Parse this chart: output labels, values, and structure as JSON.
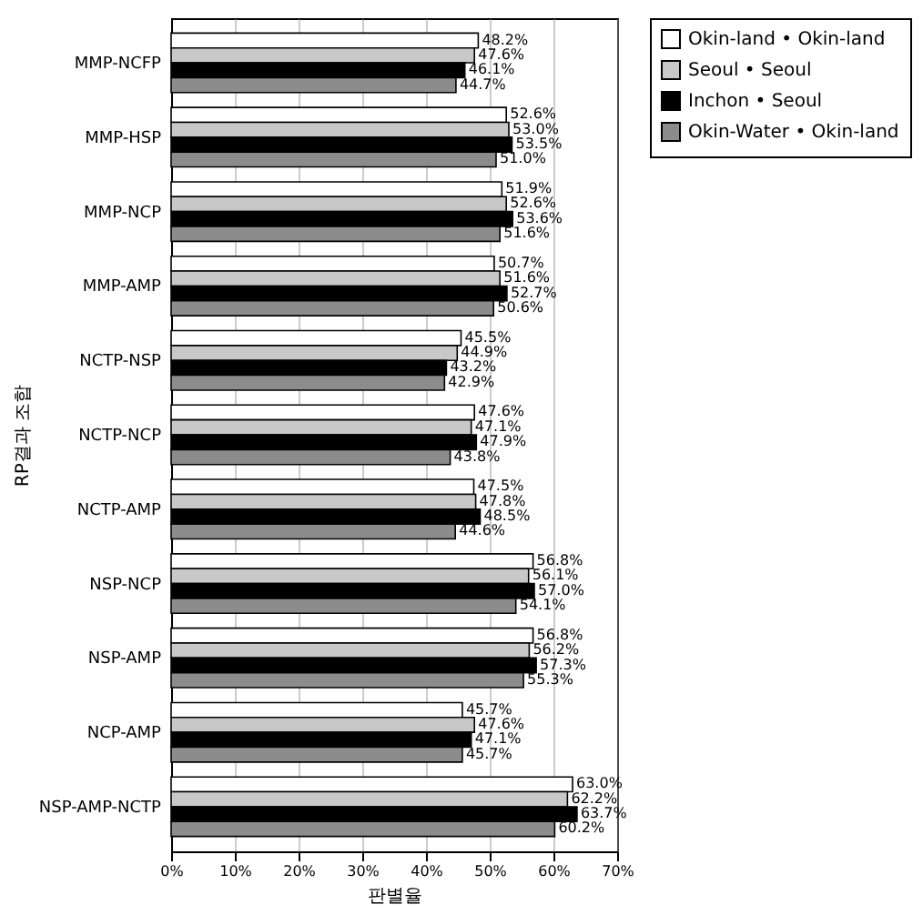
{
  "chart_data": {
    "type": "bar",
    "orientation": "horizontal",
    "xlabel": "판별율",
    "ylabel": "RP결과 조합",
    "categories": [
      "MMP-NCFP",
      "MMP-HSP",
      "MMP-NCP",
      "MMP-AMP",
      "NCTP-NSP",
      "NCTP-NCP",
      "NCTP-AMP",
      "NSP-NCP",
      "NSP-AMP",
      "NCP-AMP",
      "NSP-AMP-NCTP"
    ],
    "series": [
      {
        "name": "Okin-land • Okin-land",
        "color": "#ffffff",
        "values": [
          48.2,
          52.6,
          51.9,
          50.7,
          45.5,
          47.6,
          47.5,
          56.8,
          56.8,
          45.7,
          63.0
        ],
        "value_labels": [
          "48.2%",
          "52.6%",
          "51.9%",
          "50.7%",
          "45.5%",
          "47.6%",
          "47.5%",
          "56.8%",
          "56.8%",
          "45.7%",
          "63.0%"
        ]
      },
      {
        "name": "Seoul • Seoul",
        "color": "#c8c8c8",
        "values": [
          47.6,
          53.0,
          52.6,
          51.6,
          44.9,
          47.1,
          47.8,
          56.1,
          56.2,
          47.6,
          62.2
        ],
        "value_labels": [
          "47.6%",
          "53.0%",
          "52.6%",
          "51.6%",
          "44.9%",
          "47.1%",
          "47.8%",
          "56.1%",
          "56.2%",
          "47.6%",
          "62.2%"
        ]
      },
      {
        "name": "Inchon • Seoul",
        "color": "#000000",
        "values": [
          46.1,
          53.5,
          53.6,
          52.7,
          43.2,
          47.9,
          48.5,
          57.0,
          57.3,
          47.1,
          63.7
        ],
        "value_labels": [
          "46.1%",
          "53.5%",
          "53.6%",
          "52.7%",
          "43.2%",
          "47.9%",
          "48.5%",
          "57.0%",
          "57.3%",
          "47.1%",
          "63.7%"
        ]
      },
      {
        "name": "Okin-Water • Okin-land",
        "color": "#8c8c8c",
        "values": [
          44.7,
          51.0,
          51.6,
          50.6,
          42.9,
          43.8,
          44.6,
          54.1,
          55.3,
          45.7,
          60.2
        ],
        "value_labels": [
          "44.7%",
          "51.0%",
          "51.6%",
          "50.6%",
          "42.9%",
          "43.8%",
          "44.6%",
          "54.1%",
          "55.3%",
          "45.7%",
          "60.2%"
        ]
      }
    ],
    "xlim": [
      0,
      70
    ],
    "xticks": [
      {
        "value": 0,
        "label": "0%"
      },
      {
        "value": 10,
        "label": "10%"
      },
      {
        "value": 20,
        "label": "20%"
      },
      {
        "value": 30,
        "label": "30%"
      },
      {
        "value": 40,
        "label": "40%"
      },
      {
        "value": 50,
        "label": "50%"
      },
      {
        "value": 60,
        "label": "60%"
      },
      {
        "value": 70,
        "label": "70%"
      }
    ],
    "grid": "x",
    "legend": "right"
  }
}
